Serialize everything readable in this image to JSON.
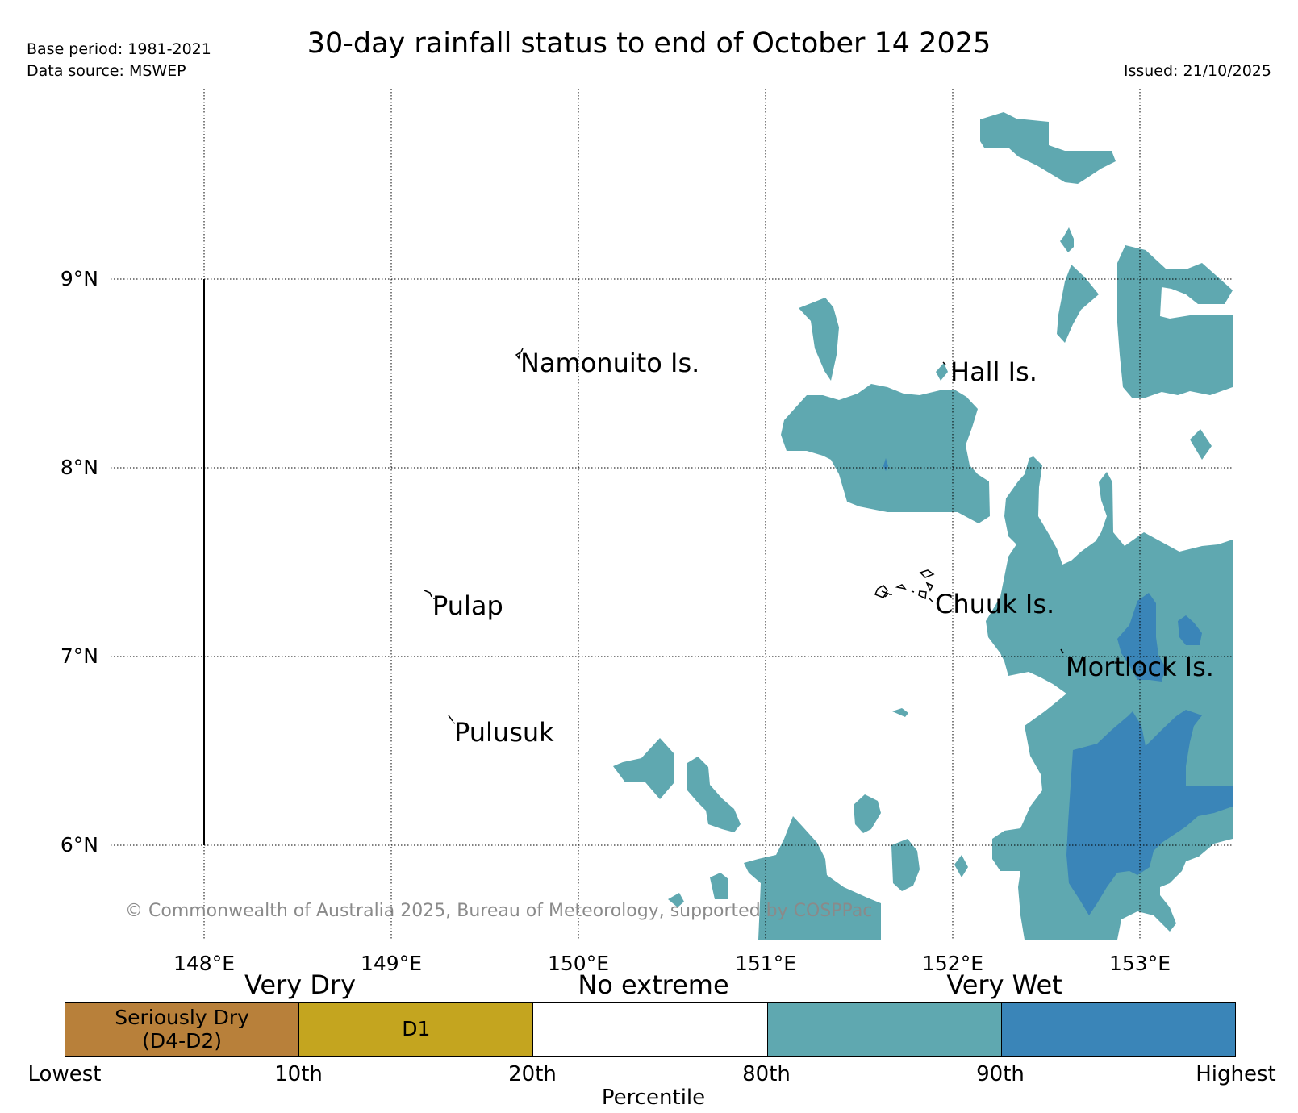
{
  "header": {
    "title": "30-day rainfall status to end of October 14 2025",
    "base_period": "Base period: 1981-2021",
    "data_source": "Data source: MSWEP",
    "issued": "Issued: 21/10/2025"
  },
  "axes": {
    "lon_labels": [
      "148°E",
      "149°E",
      "150°E",
      "151°E",
      "152°E",
      "153°E"
    ],
    "lat_labels": [
      "9°N",
      "8°N",
      "7°N",
      "6°N"
    ]
  },
  "places": [
    {
      "name": "Namonuito Is."
    },
    {
      "name": "Hall Is."
    },
    {
      "name": "Pulap"
    },
    {
      "name": "Chuuk Is."
    },
    {
      "name": "Mortlock Is."
    },
    {
      "name": "Pulusuk"
    }
  ],
  "copyright": "© Commonwealth of Australia 2025, Bureau of Meteorology, supported by COSPPac",
  "colorbar": {
    "headers": [
      "Very Dry",
      "No extreme",
      "Very Wet"
    ],
    "segments": [
      {
        "label_line1": "Seriously Dry",
        "label_line2": "(D4-D2)",
        "color": "#b8803a"
      },
      {
        "label_line1": "D1",
        "label_line2": "",
        "color": "#c4a51f"
      },
      {
        "label_line1": "",
        "label_line2": "",
        "color": "#ffffff"
      },
      {
        "label_line1": "",
        "label_line2": "",
        "color": "#5fa8b0"
      },
      {
        "label_line1": "",
        "label_line2": "",
        "color": "#3a85b8"
      }
    ],
    "ticks": [
      "Lowest",
      "10th",
      "20th",
      "80th",
      "90th",
      "Highest"
    ],
    "axis_label": "Percentile"
  },
  "colors": {
    "wet_80_90": "#5fa8b0",
    "wet_90_plus": "#3a85b8"
  }
}
